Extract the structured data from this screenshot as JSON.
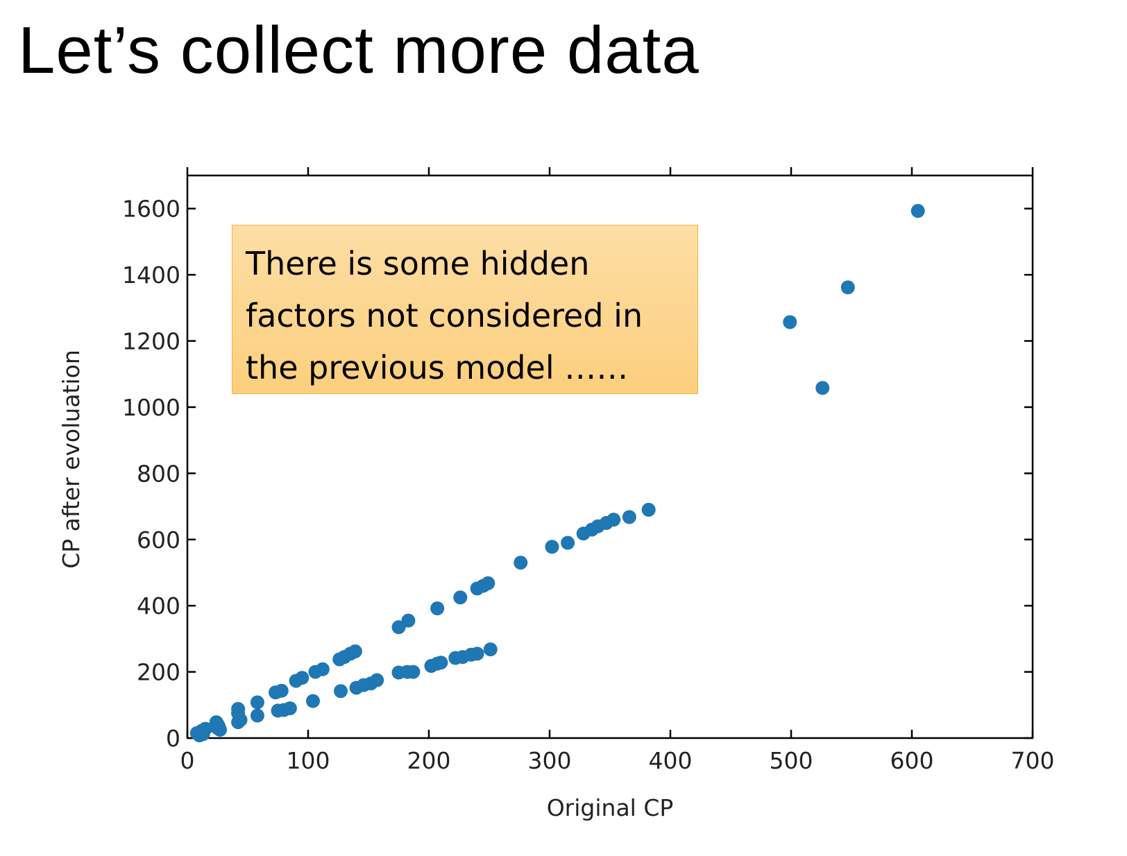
{
  "slide": {
    "title": "Let’s collect more data"
  },
  "callout": {
    "lines": [
      "There is some hidden",
      "factors not considered in",
      "the previous model ……"
    ]
  },
  "colors": {
    "points": "#1f77b4",
    "callout_fill": "#fcd38c",
    "callout_border": "#f5b43a",
    "axes": "#000000"
  },
  "chart_data": {
    "type": "scatter",
    "title": "",
    "xlabel": "Original CP",
    "ylabel": "CP after evoluation",
    "xlim": [
      0,
      700
    ],
    "ylim": [
      0,
      1700
    ],
    "xticks": [
      0,
      100,
      200,
      300,
      400,
      500,
      600,
      700
    ],
    "yticks": [
      0,
      200,
      400,
      600,
      800,
      1000,
      1200,
      1400,
      1600
    ],
    "grid": false,
    "legend": "none",
    "series": [
      {
        "points": [
          [
            8,
            15
          ],
          [
            12,
            22
          ],
          [
            15,
            28
          ],
          [
            24,
            48
          ],
          [
            26,
            35
          ],
          [
            25,
            42
          ],
          [
            42,
            75
          ],
          [
            42,
            88
          ],
          [
            58,
            108
          ],
          [
            73,
            138
          ],
          [
            78,
            143
          ],
          [
            90,
            173
          ],
          [
            95,
            182
          ],
          [
            106,
            200
          ],
          [
            112,
            208
          ],
          [
            126,
            238
          ],
          [
            130,
            245
          ],
          [
            135,
            255
          ],
          [
            139,
            262
          ],
          [
            175,
            335
          ],
          [
            183,
            355
          ],
          [
            207,
            392
          ],
          [
            226,
            425
          ],
          [
            240,
            452
          ],
          [
            245,
            460
          ],
          [
            249,
            468
          ],
          [
            276,
            530
          ],
          [
            302,
            578
          ],
          [
            315,
            590
          ],
          [
            328,
            618
          ],
          [
            335,
            630
          ],
          [
            340,
            640
          ],
          [
            347,
            650
          ],
          [
            353,
            660
          ],
          [
            366,
            668
          ],
          [
            382,
            690
          ],
          [
            10,
            8
          ],
          [
            13,
            12
          ],
          [
            25,
            30
          ],
          [
            27,
            25
          ],
          [
            42,
            48
          ],
          [
            44,
            55
          ],
          [
            58,
            68
          ],
          [
            75,
            83
          ],
          [
            80,
            85
          ],
          [
            85,
            90
          ],
          [
            104,
            112
          ],
          [
            127,
            142
          ],
          [
            140,
            152
          ],
          [
            146,
            160
          ],
          [
            152,
            165
          ],
          [
            157,
            175
          ],
          [
            175,
            198
          ],
          [
            182,
            200
          ],
          [
            187,
            200
          ],
          [
            202,
            218
          ],
          [
            207,
            225
          ],
          [
            210,
            228
          ],
          [
            222,
            242
          ],
          [
            228,
            245
          ],
          [
            235,
            252
          ],
          [
            240,
            255
          ],
          [
            251,
            268
          ],
          [
            499,
            1257
          ],
          [
            526,
            1058
          ],
          [
            547,
            1362
          ],
          [
            605,
            1593
          ]
        ]
      }
    ]
  }
}
